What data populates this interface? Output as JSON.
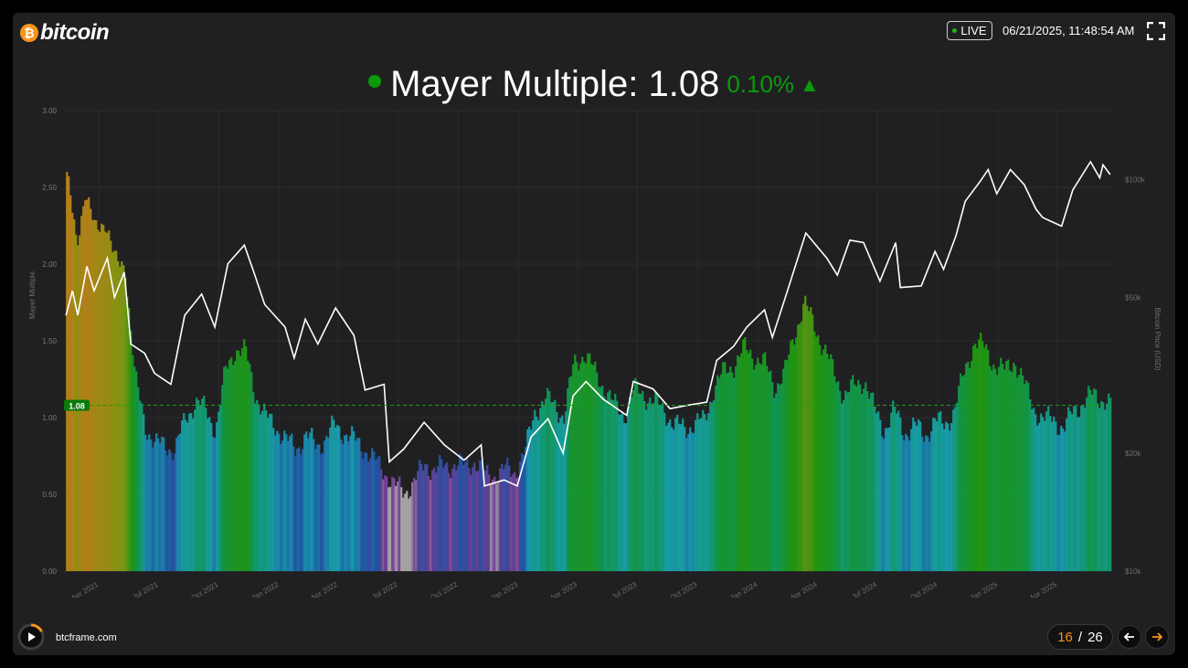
{
  "header": {
    "brand": "bitcoin",
    "live_label": "LIVE",
    "timestamp": "06/21/2025, 11:48:54 AM"
  },
  "title": {
    "text": "Mayer Multiple: 1.08",
    "change": "0.10%",
    "direction": "up",
    "color": "#0a9a0a"
  },
  "footer": {
    "site": "btcframe.com",
    "page_current": "16",
    "page_separator": "/",
    "page_total": "26",
    "accent": "#f7931a"
  },
  "chart_data": {
    "type": "bar",
    "ylabel": "Mayer Multiple",
    "y2label": "Bitcoin Price (USD)",
    "ylim": [
      0,
      3
    ],
    "y_ticks": [
      "0.00",
      "0.50",
      "1.00",
      "1.50",
      "2.00",
      "2.50",
      "3.00"
    ],
    "y2_ticks": [
      "$10k",
      "$20k",
      "$50k",
      "$100k"
    ],
    "y2_tick_values": [
      10000,
      20000,
      50000,
      100000
    ],
    "y2lim": [
      10000,
      150000
    ],
    "x_ticks": [
      "Apr 2021",
      "Jul 2021",
      "Oct 2021",
      "Jan 2022",
      "Apr 2022",
      "Jul 2022",
      "Oct 2022",
      "Jan 2023",
      "Apr 2023",
      "Jul 2023",
      "Oct 2023",
      "Jan 2024",
      "Apr 2024",
      "Jul 2024",
      "Oct 2024",
      "Jan 2025",
      "Apr 2025"
    ],
    "current_value": 1.08,
    "current_label": "1.08",
    "mayer_series": [
      {
        "date": "2021-02-10",
        "v": 2.6
      },
      {
        "date": "2021-02-25",
        "v": 2.1
      },
      {
        "date": "2021-03-10",
        "v": 2.5
      },
      {
        "date": "2021-03-25",
        "v": 2.2
      },
      {
        "date": "2021-04-10",
        "v": 2.3
      },
      {
        "date": "2021-04-25",
        "v": 2.0
      },
      {
        "date": "2021-05-10",
        "v": 2.0
      },
      {
        "date": "2021-05-25",
        "v": 1.25
      },
      {
        "date": "2021-06-10",
        "v": 0.95
      },
      {
        "date": "2021-06-25",
        "v": 0.82
      },
      {
        "date": "2021-07-10",
        "v": 0.83
      },
      {
        "date": "2021-07-25",
        "v": 0.78
      },
      {
        "date": "2021-08-10",
        "v": 1.0
      },
      {
        "date": "2021-08-25",
        "v": 1.1
      },
      {
        "date": "2021-09-10",
        "v": 1.05
      },
      {
        "date": "2021-09-25",
        "v": 0.92
      },
      {
        "date": "2021-10-10",
        "v": 1.3
      },
      {
        "date": "2021-10-25",
        "v": 1.45
      },
      {
        "date": "2021-11-10",
        "v": 1.42
      },
      {
        "date": "2021-11-25",
        "v": 1.15
      },
      {
        "date": "2021-12-10",
        "v": 1.0
      },
      {
        "date": "2021-12-25",
        "v": 0.95
      },
      {
        "date": "2022-01-10",
        "v": 0.85
      },
      {
        "date": "2022-01-25",
        "v": 0.8
      },
      {
        "date": "2022-02-10",
        "v": 0.88
      },
      {
        "date": "2022-02-25",
        "v": 0.82
      },
      {
        "date": "2022-03-10",
        "v": 0.85
      },
      {
        "date": "2022-03-25",
        "v": 0.95
      },
      {
        "date": "2022-04-10",
        "v": 0.9
      },
      {
        "date": "2022-04-25",
        "v": 0.85
      },
      {
        "date": "2022-05-10",
        "v": 0.8
      },
      {
        "date": "2022-05-25",
        "v": 0.72
      },
      {
        "date": "2022-06-10",
        "v": 0.65
      },
      {
        "date": "2022-06-25",
        "v": 0.55
      },
      {
        "date": "2022-07-10",
        "v": 0.52
      },
      {
        "date": "2022-07-25",
        "v": 0.58
      },
      {
        "date": "2022-08-10",
        "v": 0.7
      },
      {
        "date": "2022-08-25",
        "v": 0.66
      },
      {
        "date": "2022-09-10",
        "v": 0.68
      },
      {
        "date": "2022-09-25",
        "v": 0.7
      },
      {
        "date": "2022-10-10",
        "v": 0.68
      },
      {
        "date": "2022-10-25",
        "v": 0.72
      },
      {
        "date": "2022-11-10",
        "v": 0.62
      },
      {
        "date": "2022-11-25",
        "v": 0.63
      },
      {
        "date": "2022-12-10",
        "v": 0.66
      },
      {
        "date": "2022-12-25",
        "v": 0.65
      },
      {
        "date": "2023-01-10",
        "v": 0.78
      },
      {
        "date": "2023-01-25",
        "v": 1.05
      },
      {
        "date": "2023-02-10",
        "v": 1.12
      },
      {
        "date": "2023-02-25",
        "v": 1.08
      },
      {
        "date": "2023-03-10",
        "v": 1.0
      },
      {
        "date": "2023-03-25",
        "v": 1.35
      },
      {
        "date": "2023-04-10",
        "v": 1.42
      },
      {
        "date": "2023-04-25",
        "v": 1.3
      },
      {
        "date": "2023-05-10",
        "v": 1.2
      },
      {
        "date": "2023-05-25",
        "v": 1.08
      },
      {
        "date": "2023-06-10",
        "v": 1.02
      },
      {
        "date": "2023-06-25",
        "v": 1.18
      },
      {
        "date": "2023-07-10",
        "v": 1.15
      },
      {
        "date": "2023-07-25",
        "v": 1.1
      },
      {
        "date": "2023-08-10",
        "v": 1.05
      },
      {
        "date": "2023-08-25",
        "v": 0.95
      },
      {
        "date": "2023-09-10",
        "v": 0.93
      },
      {
        "date": "2023-09-25",
        "v": 0.96
      },
      {
        "date": "2023-10-10",
        "v": 0.98
      },
      {
        "date": "2023-10-25",
        "v": 1.2
      },
      {
        "date": "2023-11-10",
        "v": 1.3
      },
      {
        "date": "2023-11-25",
        "v": 1.35
      },
      {
        "date": "2023-12-10",
        "v": 1.45
      },
      {
        "date": "2023-12-25",
        "v": 1.4
      },
      {
        "date": "2024-01-10",
        "v": 1.35
      },
      {
        "date": "2024-01-25",
        "v": 1.2
      },
      {
        "date": "2024-02-10",
        "v": 1.3
      },
      {
        "date": "2024-02-25",
        "v": 1.55
      },
      {
        "date": "2024-03-10",
        "v": 1.75
      },
      {
        "date": "2024-03-25",
        "v": 1.6
      },
      {
        "date": "2024-04-10",
        "v": 1.45
      },
      {
        "date": "2024-04-25",
        "v": 1.28
      },
      {
        "date": "2024-05-10",
        "v": 1.15
      },
      {
        "date": "2024-05-25",
        "v": 1.2
      },
      {
        "date": "2024-06-10",
        "v": 1.25
      },
      {
        "date": "2024-06-25",
        "v": 1.05
      },
      {
        "date": "2024-07-10",
        "v": 0.92
      },
      {
        "date": "2024-07-25",
        "v": 1.05
      },
      {
        "date": "2024-08-10",
        "v": 0.9
      },
      {
        "date": "2024-08-25",
        "v": 0.95
      },
      {
        "date": "2024-09-10",
        "v": 0.88
      },
      {
        "date": "2024-09-25",
        "v": 0.98
      },
      {
        "date": "2024-10-10",
        "v": 0.95
      },
      {
        "date": "2024-10-25",
        "v": 1.05
      },
      {
        "date": "2024-11-10",
        "v": 1.3
      },
      {
        "date": "2024-11-25",
        "v": 1.5
      },
      {
        "date": "2024-12-10",
        "v": 1.45
      },
      {
        "date": "2024-12-25",
        "v": 1.35
      },
      {
        "date": "2025-01-10",
        "v": 1.3
      },
      {
        "date": "2025-01-25",
        "v": 1.38
      },
      {
        "date": "2025-02-10",
        "v": 1.2
      },
      {
        "date": "2025-02-25",
        "v": 1.05
      },
      {
        "date": "2025-03-10",
        "v": 0.98
      },
      {
        "date": "2025-03-25",
        "v": 1.0
      },
      {
        "date": "2025-04-10",
        "v": 0.92
      },
      {
        "date": "2025-04-25",
        "v": 1.05
      },
      {
        "date": "2025-05-10",
        "v": 1.1
      },
      {
        "date": "2025-05-25",
        "v": 1.15
      },
      {
        "date": "2025-06-10",
        "v": 1.12
      },
      {
        "date": "2025-06-21",
        "v": 1.08
      }
    ],
    "price_series": [
      {
        "date": "2021-02-10",
        "p": 45000
      },
      {
        "date": "2021-02-20",
        "p": 52000
      },
      {
        "date": "2021-02-28",
        "p": 45000
      },
      {
        "date": "2021-03-14",
        "p": 60000
      },
      {
        "date": "2021-03-25",
        "p": 52000
      },
      {
        "date": "2021-04-14",
        "p": 63000
      },
      {
        "date": "2021-04-25",
        "p": 50000
      },
      {
        "date": "2021-05-10",
        "p": 58000
      },
      {
        "date": "2021-05-20",
        "p": 38000
      },
      {
        "date": "2021-06-10",
        "p": 36000
      },
      {
        "date": "2021-06-25",
        "p": 32000
      },
      {
        "date": "2021-07-20",
        "p": 30000
      },
      {
        "date": "2021-08-10",
        "p": 45000
      },
      {
        "date": "2021-09-05",
        "p": 51000
      },
      {
        "date": "2021-09-25",
        "p": 42000
      },
      {
        "date": "2021-10-15",
        "p": 61000
      },
      {
        "date": "2021-11-09",
        "p": 68000
      },
      {
        "date": "2021-11-25",
        "p": 57000
      },
      {
        "date": "2021-12-10",
        "p": 48000
      },
      {
        "date": "2022-01-10",
        "p": 42000
      },
      {
        "date": "2022-01-24",
        "p": 35000
      },
      {
        "date": "2022-02-10",
        "p": 44000
      },
      {
        "date": "2022-03-01",
        "p": 38000
      },
      {
        "date": "2022-03-28",
        "p": 47000
      },
      {
        "date": "2022-04-25",
        "p": 40000
      },
      {
        "date": "2022-05-12",
        "p": 29000
      },
      {
        "date": "2022-06-10",
        "p": 30000
      },
      {
        "date": "2022-06-18",
        "p": 19000
      },
      {
        "date": "2022-07-10",
        "p": 20500
      },
      {
        "date": "2022-08-10",
        "p": 24000
      },
      {
        "date": "2022-09-10",
        "p": 21000
      },
      {
        "date": "2022-10-10",
        "p": 19200
      },
      {
        "date": "2022-11-05",
        "p": 21000
      },
      {
        "date": "2022-11-10",
        "p": 16500
      },
      {
        "date": "2022-12-10",
        "p": 17100
      },
      {
        "date": "2022-12-30",
        "p": 16500
      },
      {
        "date": "2023-01-20",
        "p": 22000
      },
      {
        "date": "2023-02-15",
        "p": 24500
      },
      {
        "date": "2023-03-10",
        "p": 20000
      },
      {
        "date": "2023-03-25",
        "p": 28000
      },
      {
        "date": "2023-04-14",
        "p": 30500
      },
      {
        "date": "2023-05-10",
        "p": 27500
      },
      {
        "date": "2023-06-15",
        "p": 25000
      },
      {
        "date": "2023-06-25",
        "p": 30500
      },
      {
        "date": "2023-07-25",
        "p": 29200
      },
      {
        "date": "2023-08-20",
        "p": 26000
      },
      {
        "date": "2023-09-15",
        "p": 26500
      },
      {
        "date": "2023-10-15",
        "p": 27000
      },
      {
        "date": "2023-10-30",
        "p": 34500
      },
      {
        "date": "2023-11-25",
        "p": 37500
      },
      {
        "date": "2023-12-15",
        "p": 42000
      },
      {
        "date": "2024-01-11",
        "p": 46500
      },
      {
        "date": "2024-01-23",
        "p": 39500
      },
      {
        "date": "2024-02-15",
        "p": 52000
      },
      {
        "date": "2024-03-14",
        "p": 73000
      },
      {
        "date": "2024-04-15",
        "p": 63000
      },
      {
        "date": "2024-05-01",
        "p": 57000
      },
      {
        "date": "2024-05-20",
        "p": 70000
      },
      {
        "date": "2024-06-10",
        "p": 69000
      },
      {
        "date": "2024-07-05",
        "p": 55000
      },
      {
        "date": "2024-07-29",
        "p": 69000
      },
      {
        "date": "2024-08-05",
        "p": 53000
      },
      {
        "date": "2024-09-06",
        "p": 53500
      },
      {
        "date": "2024-09-27",
        "p": 65500
      },
      {
        "date": "2024-10-10",
        "p": 59000
      },
      {
        "date": "2024-10-29",
        "p": 72000
      },
      {
        "date": "2024-11-12",
        "p": 88000
      },
      {
        "date": "2024-12-05",
        "p": 99000
      },
      {
        "date": "2024-12-17",
        "p": 106000
      },
      {
        "date": "2024-12-30",
        "p": 92000
      },
      {
        "date": "2025-01-20",
        "p": 106000
      },
      {
        "date": "2025-02-10",
        "p": 97000
      },
      {
        "date": "2025-02-28",
        "p": 84000
      },
      {
        "date": "2025-03-10",
        "p": 80000
      },
      {
        "date": "2025-04-08",
        "p": 76000
      },
      {
        "date": "2025-04-25",
        "p": 94000
      },
      {
        "date": "2025-05-22",
        "p": 111000
      },
      {
        "date": "2025-06-05",
        "p": 101000
      },
      {
        "date": "2025-06-10",
        "p": 109000
      },
      {
        "date": "2025-06-21",
        "p": 103000
      }
    ],
    "color_stops": [
      {
        "v": 0.55,
        "color": "#b0b0b0"
      },
      {
        "v": 0.62,
        "color": "#7a3fa0"
      },
      {
        "v": 0.75,
        "color": "#2058b0"
      },
      {
        "v": 0.95,
        "color": "#18a8b8"
      },
      {
        "v": 1.2,
        "color": "#10a050"
      },
      {
        "v": 1.5,
        "color": "#20a010"
      },
      {
        "v": 2.0,
        "color": "#8aa010"
      },
      {
        "v": 2.4,
        "color": "#c08a18"
      }
    ],
    "price_line_color": "#ffffff",
    "reference_line_color": "#1c9a1c"
  }
}
